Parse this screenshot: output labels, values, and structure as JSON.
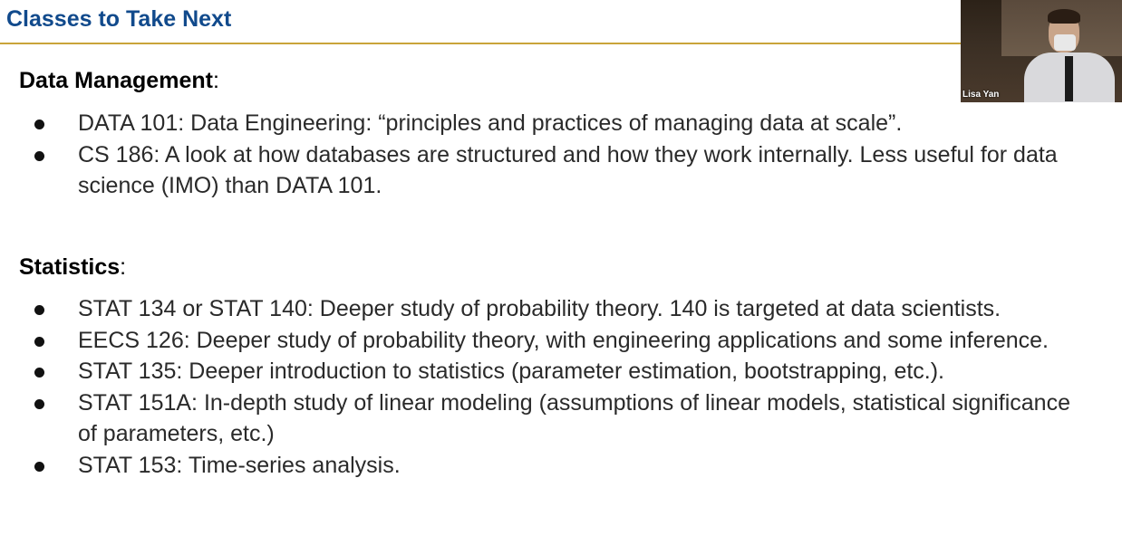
{
  "slide": {
    "title": "Classes to Take Next"
  },
  "webcam": {
    "name": "Lisa Yan"
  },
  "sections": {
    "data_management": {
      "heading": "Data Management",
      "heading_suffix": ":",
      "items": [
        "DATA 101: Data Engineering: “principles and practices of managing data at scale”.",
        "CS 186: A look at how databases are structured and how they work internally. Less useful for data science (IMO) than DATA 101."
      ]
    },
    "statistics": {
      "heading": "Statistics",
      "heading_suffix": ":",
      "items": [
        "STAT 134 or STAT 140: Deeper study of probability theory. 140 is targeted at data scientists.",
        "EECS 126: Deeper study of probability theory, with engineering applications and some inference.",
        "STAT 135: Deeper introduction to statistics (parameter estimation, bootstrapping, etc.).",
        "STAT 151A: In-depth study of linear modeling (assumptions of linear models, statistical significance of parameters, etc.)",
        "STAT 153: Time-series analysis."
      ]
    }
  },
  "colors": {
    "title": "#114a8c",
    "rule": "#c9a43a"
  }
}
